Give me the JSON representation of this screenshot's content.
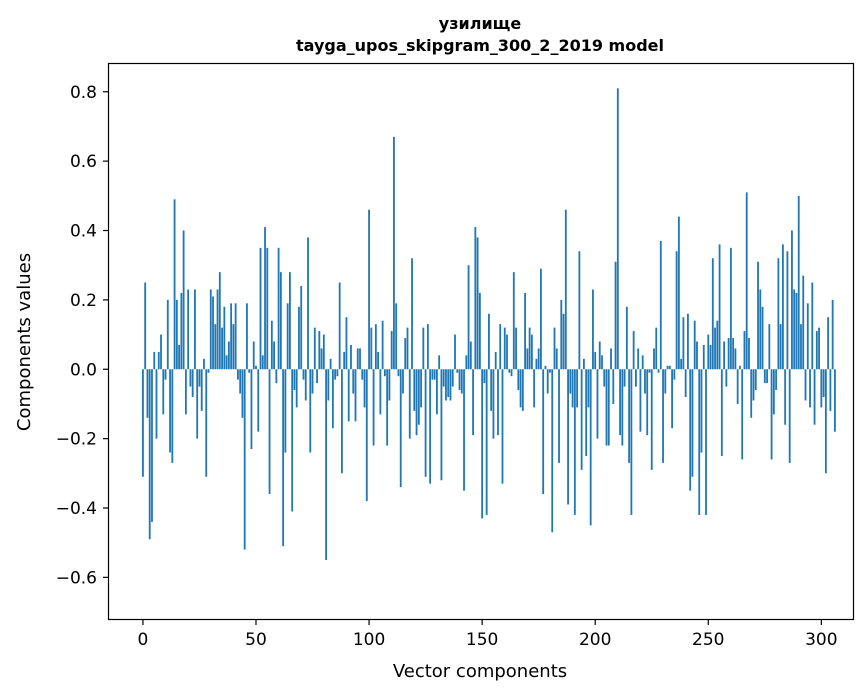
{
  "chart_data": {
    "type": "bar",
    "title_line1": "узилище",
    "title_line2": "tayga_upos_skipgram_300_2_2019 model",
    "xlabel": "Vector components",
    "ylabel": "Components values",
    "xlim": [
      -15,
      314
    ],
    "ylim": [
      -0.72,
      0.88
    ],
    "xticks": [
      0,
      50,
      100,
      150,
      200,
      250,
      300
    ],
    "xtick_labels": [
      "0",
      "50",
      "100",
      "150",
      "200",
      "250",
      "300"
    ],
    "yticks": [
      -0.6,
      -0.4,
      -0.2,
      0.0,
      0.2,
      0.4,
      0.6,
      0.8
    ],
    "ytick_labels": [
      "−0.6",
      "−0.4",
      "−0.2",
      "0.0",
      "0.2",
      "0.4",
      "0.6",
      "0.8"
    ],
    "bar_color": "#1f77b4",
    "grid": false,
    "values": [
      -0.31,
      0.25,
      -0.14,
      -0.49,
      -0.44,
      0.05,
      -0.2,
      0.05,
      0.1,
      -0.13,
      -0.03,
      0.2,
      -0.24,
      -0.27,
      0.49,
      0.2,
      0.07,
      0.22,
      0.4,
      -0.13,
      0.23,
      -0.05,
      -0.08,
      0.23,
      -0.2,
      -0.05,
      -0.12,
      0.03,
      -0.31,
      -0.01,
      0.23,
      0.21,
      0.13,
      0.23,
      0.28,
      0.12,
      0.18,
      0.04,
      0.08,
      0.19,
      0.13,
      0.19,
      -0.03,
      -0.07,
      -0.14,
      -0.52,
      0.19,
      -0.01,
      -0.23,
      0.08,
      0.01,
      -0.18,
      0.35,
      0.04,
      0.41,
      0.35,
      -0.36,
      0.14,
      0.08,
      -0.04,
      0.35,
      0.28,
      -0.51,
      -0.24,
      0.19,
      0.28,
      -0.41,
      -0.06,
      -0.11,
      0.18,
      0.24,
      -0.03,
      -0.09,
      0.38,
      -0.24,
      -0.07,
      0.12,
      -0.04,
      0.11,
      0.06,
      0.1,
      -0.55,
      -0.09,
      0.03,
      -0.17,
      -0.03,
      -0.02,
      0.25,
      -0.3,
      0.05,
      0.15,
      -0.15,
      0.07,
      -0.07,
      -0.15,
      0.06,
      0.06,
      -0.03,
      -0.11,
      -0.38,
      0.46,
      0.12,
      -0.22,
      0.13,
      0.05,
      -0.13,
      0.14,
      -0.02,
      -0.22,
      -0.09,
      0.11,
      0.67,
      0.19,
      -0.02,
      -0.34,
      -0.07,
      0.09,
      0.12,
      -0.2,
      0.32,
      -0.12,
      -0.19,
      -0.16,
      -0.11,
      0.12,
      -0.31,
      0.13,
      -0.33,
      -0.03,
      -0.03,
      -0.13,
      0.04,
      -0.32,
      -0.05,
      -0.09,
      -0.08,
      -0.09,
      -0.05,
      0.1,
      -0.01,
      -0.06,
      -0.07,
      -0.35,
      0.04,
      0.3,
      0.08,
      -0.19,
      0.41,
      0.38,
      0.22,
      -0.43,
      -0.04,
      -0.42,
      0.16,
      -0.12,
      -0.2,
      0.05,
      -0.19,
      0.13,
      -0.33,
      0.12,
      0.1,
      -0.01,
      -0.02,
      0.28,
      0.12,
      -0.06,
      -0.11,
      -0.12,
      0.22,
      0.06,
      0.12,
      0.1,
      -0.11,
      0.03,
      0.06,
      0.29,
      -0.36,
      0.01,
      -0.07,
      -0.01,
      -0.47,
      0.12,
      0.06,
      -0.27,
      0.2,
      0.16,
      0.46,
      -0.39,
      -0.07,
      -0.11,
      -0.42,
      -0.11,
      0.34,
      -0.29,
      0.03,
      -0.25,
      -0.11,
      -0.45,
      0.23,
      0.05,
      -0.2,
      0.08,
      0.04,
      -0.05,
      -0.22,
      -0.22,
      0.06,
      -0.1,
      0.31,
      0.81,
      -0.19,
      -0.22,
      -0.05,
      0.18,
      -0.27,
      -0.42,
      0.11,
      -0.05,
      0.06,
      -0.18,
      0.04,
      -0.07,
      -0.19,
      -0.01,
      -0.29,
      0.06,
      0.12,
      -0.01,
      0.37,
      -0.27,
      -0.07,
      0.01,
      0.01,
      -0.17,
      -0.03,
      0.34,
      0.44,
      0.03,
      0.15,
      -0.08,
      0.16,
      -0.35,
      -0.31,
      0.14,
      0.08,
      -0.42,
      -0.24,
      0.07,
      -0.42,
      0.1,
      0.07,
      0.32,
      0.12,
      0.14,
      0.36,
      -0.25,
      0.08,
      -0.05,
      0.09,
      0.35,
      0.09,
      0.06,
      -0.1,
      0.01,
      -0.26,
      0.11,
      0.51,
      0.09,
      -0.14,
      -0.09,
      -0.06,
      0.31,
      0.23,
      0.18,
      -0.04,
      -0.04,
      0.13,
      -0.26,
      -0.13,
      -0.06,
      0.32,
      0.13,
      0.36,
      -0.16,
      0.34,
      -0.27,
      0.4,
      0.23,
      0.22,
      0.5,
      0.13,
      0.27,
      -0.09,
      0.19,
      -0.11,
      0.25,
      -0.16,
      0.11,
      0.12,
      -0.11,
      -0.08,
      -0.3,
      0.15,
      -0.12,
      0.2,
      -0.18
    ]
  }
}
